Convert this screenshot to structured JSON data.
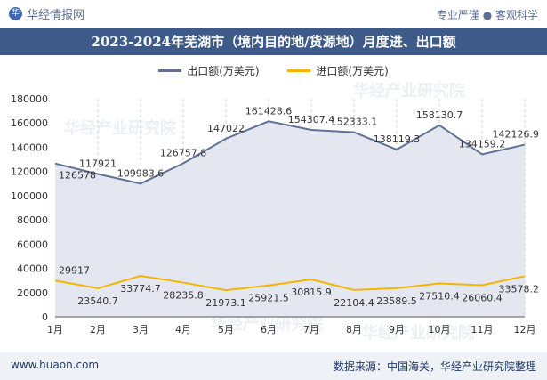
{
  "header": {
    "brand": "华经情报网",
    "logo_glyph": "华",
    "tagline": "专业严谨 ● 客观科学"
  },
  "title": "2023-2024年芜湖市（境内目的地/货源地）月度进、出口额",
  "watermark": "华经产业研究院",
  "footer": {
    "url": "www.huaon.com",
    "source": "数据来源：中国海关，华经产业研究院整理"
  },
  "chart_data": {
    "type": "area",
    "categories": [
      "1月",
      "2月",
      "3月",
      "4月",
      "5月",
      "6月",
      "7月",
      "8月",
      "9月",
      "10月",
      "11月",
      "12月"
    ],
    "series": [
      {
        "name": "出口额(万美元)",
        "color": "#5f7196",
        "values": [
          126578,
          117921,
          109983.6,
          126757.8,
          147022,
          161428.6,
          154307.4,
          152333.1,
          138119.3,
          158130.7,
          134159.2,
          142126.9
        ],
        "labels": [
          "126578",
          "117921",
          "109983.6",
          "126757.8",
          "147022",
          "161428.6",
          "154307.4",
          "152333.1",
          "138119.3",
          "158130.7",
          "134159.2",
          "142126.9"
        ]
      },
      {
        "name": "进口额(万美元)",
        "color": "#f4b400",
        "values": [
          29917,
          23540.7,
          33774.7,
          28235.8,
          21973.1,
          25921.5,
          30815.9,
          22104.4,
          23589.5,
          27510.4,
          26060.4,
          33578.2
        ],
        "labels": [
          "29917",
          "23540.7",
          "33774.7",
          "28235.8",
          "21973.1",
          "25921.5",
          "30815.9",
          "22104.4",
          "23589.5",
          "27510.4",
          "26060.4",
          "33578.2"
        ]
      }
    ],
    "y_ticks": [
      "0",
      "20000",
      "40000",
      "60000",
      "80000",
      "100000",
      "120000",
      "140000",
      "160000",
      "180000"
    ],
    "ylim": [
      0,
      180000
    ],
    "grid": "vertical-dashed",
    "legend_position": "top-center"
  }
}
